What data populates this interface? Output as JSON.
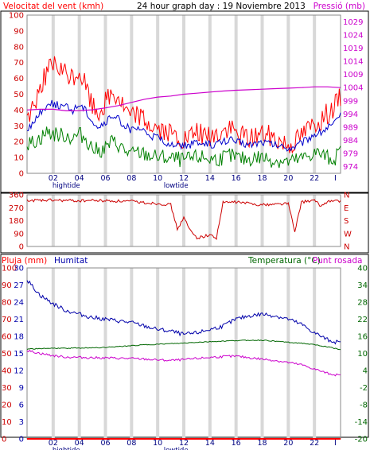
{
  "header": {
    "wind_title": "Velocitat del vent (kmh)",
    "graph_title": "24 hour graph day : 19 Noviembre 2013",
    "pressure_title": "Pressió (mb)"
  },
  "colors": {
    "wind_gust": "#ff0000",
    "wind_avg": "#0000cc",
    "wind_low": "#008000",
    "pressure": "#cc00cc",
    "direction": "#cc0000",
    "rain": "#ff0000",
    "humidity": "#0000aa",
    "temperature": "#006600",
    "dewpoint": "#cc00cc",
    "grid_band": "#d8d8d8",
    "plot_border": "#888888"
  },
  "x_axis": {
    "tick_labels": [
      "02",
      "04",
      "06",
      "08",
      "10",
      "12",
      "14",
      "16",
      "18",
      "20",
      "22",
      "I"
    ],
    "tide_labels": [
      {
        "text": "hightide",
        "hour": 3.0
      },
      {
        "text": "lowtide",
        "hour": 11.4
      }
    ]
  },
  "chart_data": [
    {
      "type": "line",
      "title": "24 hour graph day : 19 Noviembre 2013",
      "x_range": [
        0,
        24
      ],
      "y_left": {
        "label": "Velocitat del vent (kmh)",
        "range": [
          0,
          100
        ],
        "ticks": [
          "0",
          "10",
          "20",
          "30",
          "40",
          "50",
          "60",
          "70",
          "80",
          "90",
          "100"
        ]
      },
      "y_right": {
        "label": "Pressió (mb)",
        "range": [
          971.5,
          1031.5
        ],
        "ticks": [
          "974",
          "979",
          "984",
          "989",
          "994",
          "999",
          "1004",
          "1009",
          "1014",
          "1019",
          "1024",
          "1029"
        ]
      },
      "series": [
        {
          "name": "wind-gust",
          "axis": "left",
          "x": [
            0,
            0.5,
            1,
            1.5,
            2,
            2.5,
            3,
            3.5,
            4,
            4.5,
            5,
            5.5,
            6,
            6.5,
            7,
            7.5,
            8,
            8.5,
            9,
            9.5,
            10,
            10.5,
            11,
            11.5,
            12,
            12.5,
            13,
            13.5,
            14,
            14.5,
            15,
            15.5,
            16,
            16.5,
            17,
            17.5,
            18,
            18.5,
            19,
            19.5,
            20,
            20.5,
            21,
            21.5,
            22,
            22.5,
            23,
            23.5,
            24
          ],
          "y": [
            35,
            42,
            55,
            64,
            68,
            65,
            62,
            60,
            64,
            55,
            42,
            38,
            45,
            50,
            48,
            40,
            35,
            38,
            33,
            30,
            28,
            26,
            24,
            22,
            20,
            22,
            25,
            24,
            22,
            24,
            26,
            28,
            25,
            24,
            22,
            24,
            25,
            24,
            22,
            20,
            18,
            20,
            24,
            28,
            32,
            34,
            38,
            42,
            48
          ]
        },
        {
          "name": "wind-average",
          "axis": "left",
          "x": [
            0,
            0.5,
            1,
            1.5,
            2,
            2.5,
            3,
            3.5,
            4,
            4.5,
            5,
            5.5,
            6,
            6.5,
            7,
            7.5,
            8,
            8.5,
            9,
            9.5,
            10,
            10.5,
            11,
            11.5,
            12,
            12.5,
            13,
            13.5,
            14,
            14.5,
            15,
            15.5,
            16,
            16.5,
            17,
            17.5,
            18,
            18.5,
            19,
            19.5,
            20,
            20.5,
            21,
            21.5,
            22,
            22.5,
            23,
            23.5,
            24
          ],
          "y": [
            28,
            32,
            38,
            43,
            44,
            43,
            42,
            40,
            44,
            40,
            33,
            29,
            32,
            36,
            34,
            30,
            27,
            28,
            26,
            24,
            22,
            20,
            19,
            18,
            17,
            18,
            19,
            19,
            18,
            19,
            20,
            21,
            20,
            19,
            18,
            19,
            20,
            19,
            18,
            17,
            16,
            17,
            19,
            22,
            25,
            26,
            29,
            31,
            36
          ]
        },
        {
          "name": "wind-low",
          "axis": "left",
          "x": [
            0,
            0.5,
            1,
            1.5,
            2,
            2.5,
            3,
            3.5,
            4,
            4.5,
            5,
            5.5,
            6,
            6.5,
            7,
            7.5,
            8,
            8.5,
            9,
            9.5,
            10,
            10.5,
            11,
            11.5,
            12,
            12.5,
            13,
            13.5,
            14,
            14.5,
            15,
            15.5,
            16,
            16.5,
            17,
            17.5,
            18,
            18.5,
            19,
            19.5,
            20,
            20.5,
            21,
            21.5,
            22,
            22.5,
            23,
            23.5,
            24
          ],
          "y": [
            18,
            20,
            22,
            26,
            25,
            24,
            24,
            22,
            25,
            22,
            16,
            14,
            16,
            20,
            18,
            14,
            12,
            13,
            12,
            11,
            10,
            10,
            9,
            9,
            8,
            9,
            10,
            10,
            9,
            9,
            10,
            11,
            10,
            9,
            9,
            10,
            10,
            9,
            8,
            8,
            7,
            8,
            9,
            11,
            13,
            12,
            10,
            9,
            14
          ]
        },
        {
          "name": "pressure",
          "axis": "right",
          "x": [
            0,
            1,
            2,
            3,
            4,
            5,
            6,
            7,
            8,
            9,
            10,
            11,
            12,
            13,
            14,
            15,
            16,
            17,
            18,
            19,
            20,
            21,
            22,
            23,
            24
          ],
          "y": [
            995.5,
            995.8,
            995.8,
            995.2,
            995.3,
            995.6,
            996.3,
            997.2,
            998.4,
            999.6,
            1000.4,
            1000.8,
            1001.5,
            1001.9,
            1002.3,
            1002.7,
            1003.0,
            1003.2,
            1003.4,
            1003.6,
            1003.8,
            1004.0,
            1004.3,
            1004.3,
            1004.0
          ]
        }
      ]
    },
    {
      "type": "line",
      "title": "",
      "x_range": [
        0,
        24
      ],
      "y_left": {
        "range": [
          0,
          360
        ],
        "ticks": [
          "0",
          "90",
          "180",
          "270",
          "360"
        ]
      },
      "y_right": {
        "ticks": [
          "N",
          "W",
          "S",
          "E",
          "N"
        ]
      },
      "series": [
        {
          "name": "wind-direction",
          "x": [
            0,
            1,
            2,
            3,
            4,
            5,
            6,
            7,
            8,
            9,
            10,
            11,
            11.5,
            12,
            12.5,
            13,
            13.5,
            14,
            14.5,
            15,
            16,
            17,
            18,
            19,
            20,
            20.5,
            21,
            22,
            22.5,
            23,
            24
          ],
          "y": [
            322,
            320,
            322,
            320,
            318,
            321,
            318,
            316,
            314,
            305,
            300,
            290,
            120,
            200,
            110,
            60,
            70,
            80,
            60,
            305,
            310,
            300,
            290,
            295,
            300,
            100,
            310,
            320,
            280,
            315,
            318
          ]
        }
      ]
    },
    {
      "type": "line",
      "title": "",
      "x_range": [
        0,
        24
      ],
      "y_left_outer": {
        "label": "Pluja (mm)",
        "range": [
          0,
          100
        ],
        "ticks": [
          "0",
          "10",
          "20",
          "30",
          "40",
          "50",
          "60",
          "70",
          "80",
          "90",
          "100"
        ]
      },
      "y_left_inner": {
        "label": "Humitat",
        "range": [
          0,
          30
        ],
        "ticks": [
          "0",
          "3",
          "6",
          "9",
          "12",
          "15",
          "18",
          "21",
          "24",
          "27",
          "30"
        ]
      },
      "y_right": {
        "label": "Temperatura (°C)",
        "range": [
          -20,
          40
        ],
        "ticks": [
          "-20",
          "-14",
          "-8",
          "-2",
          "4",
          "10",
          "16",
          "22",
          "28",
          "34",
          "40"
        ]
      },
      "legend": {
        "temperature": "Temperatura (°C)",
        "dewpoint": "Punt rosada"
      },
      "series": [
        {
          "name": "rain",
          "axis": "outer-left",
          "x": [
            0,
            24
          ],
          "y": [
            0,
            0
          ]
        },
        {
          "name": "humidity",
          "axis": "outer-left",
          "x": [
            0,
            1,
            2,
            3,
            4,
            5,
            6,
            7,
            8,
            9,
            10,
            11,
            12,
            13,
            14,
            15,
            16,
            17,
            18,
            19,
            20,
            21,
            22,
            23,
            24
          ],
          "y": [
            93,
            84,
            79,
            75,
            73,
            71,
            70,
            69,
            68,
            66,
            64,
            63,
            61,
            62,
            64,
            66,
            70,
            72,
            73,
            72,
            70,
            67,
            62,
            58,
            56
          ]
        },
        {
          "name": "temperature",
          "axis": "right",
          "x": [
            0,
            1,
            2,
            3,
            4,
            5,
            6,
            7,
            8,
            9,
            10,
            11,
            12,
            13,
            14,
            15,
            16,
            17,
            18,
            19,
            20,
            21,
            22,
            23,
            24
          ],
          "y": [
            11.5,
            11.7,
            11.8,
            11.8,
            11.9,
            12.0,
            12.1,
            12.4,
            12.7,
            13.0,
            13.2,
            13.4,
            13.6,
            13.9,
            14.1,
            14.3,
            14.5,
            14.6,
            14.6,
            14.3,
            13.9,
            13.6,
            13.0,
            12.3,
            11.3
          ]
        },
        {
          "name": "dewpoint",
          "axis": "right",
          "x": [
            0,
            1,
            2,
            3,
            4,
            5,
            6,
            7,
            8,
            9,
            10,
            11,
            12,
            13,
            14,
            15,
            16,
            17,
            18,
            19,
            20,
            21,
            22,
            23,
            24
          ],
          "y": [
            11.0,
            10.0,
            9.2,
            8.7,
            8.6,
            8.5,
            8.4,
            8.3,
            8.2,
            8.0,
            7.7,
            7.5,
            7.8,
            8.2,
            8.6,
            8.9,
            9.0,
            8.5,
            8.0,
            7.5,
            6.8,
            6.0,
            4.5,
            3.0,
            2.2
          ]
        }
      ]
    }
  ]
}
